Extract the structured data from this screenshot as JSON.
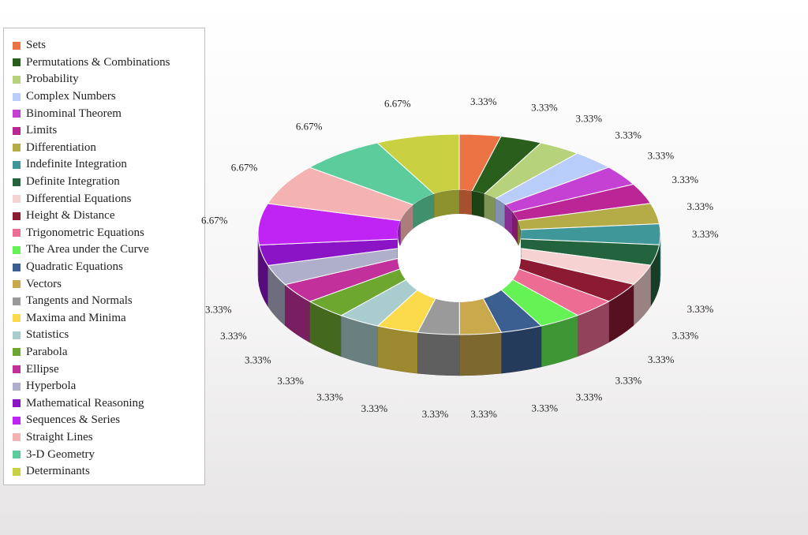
{
  "chart_data": {
    "type": "pie",
    "variant": "3d-doughnut",
    "legend_position": "left",
    "slices": [
      {
        "label": "Sets",
        "value": 3.33,
        "display": "3.33%",
        "color": "#ec7444"
      },
      {
        "label": "Permutations & Combinations",
        "value": 3.33,
        "display": "3.33%",
        "color": "#2a5e1c"
      },
      {
        "label": "Probability",
        "value": 3.33,
        "display": "3.33%",
        "color": "#b6d27a"
      },
      {
        "label": "Complex Numbers",
        "value": 3.33,
        "display": "3.33%",
        "color": "#b9cdfa"
      },
      {
        "label": "Binominal Theorem",
        "value": 3.33,
        "display": "3.33%",
        "color": "#c441d4"
      },
      {
        "label": "Limits",
        "value": 3.33,
        "display": "3.33%",
        "color": "#bb2596"
      },
      {
        "label": "Differentiation",
        "value": 3.33,
        "display": "3.33%",
        "color": "#b4ac46"
      },
      {
        "label": "Indefinite Integration",
        "value": 3.33,
        "display": "3.33%",
        "color": "#40979a"
      },
      {
        "label": "Definite Integration",
        "value": 3.33,
        "display": "3.33%",
        "color": "#23643e"
      },
      {
        "label": "Differential Equations",
        "value": 3.33,
        "display": "3.33%",
        "color": "#f7d2d2"
      },
      {
        "label": "Height & Distance",
        "value": 3.33,
        "display": "3.33%",
        "color": "#8c1a33"
      },
      {
        "label": "Trigonometric Equations",
        "value": 3.33,
        "display": "3.33%",
        "color": "#ec6c94"
      },
      {
        "label": "The Area under the Curve",
        "value": 3.33,
        "display": "3.33%",
        "color": "#64f254"
      },
      {
        "label": "Quadratic Equations",
        "value": 3.33,
        "display": "3.33%",
        "color": "#3c5f92"
      },
      {
        "label": "Vectors",
        "value": 3.33,
        "display": "3.33%",
        "color": "#c9a94c"
      },
      {
        "label": "Tangents and Normals",
        "value": 3.33,
        "display": "3.33%",
        "color": "#9a9a9a"
      },
      {
        "label": "Maxima and Minima",
        "value": 3.33,
        "display": "3.33%",
        "color": "#fbdb4c"
      },
      {
        "label": "Statistics",
        "value": 3.33,
        "display": "3.33%",
        "color": "#a9cdcf"
      },
      {
        "label": "Parabola",
        "value": 3.33,
        "display": "3.33%",
        "color": "#6da72f"
      },
      {
        "label": "Ellipse",
        "value": 3.33,
        "display": "3.33%",
        "color": "#c2309c"
      },
      {
        "label": "Hyperbola",
        "value": 3.33,
        "display": "3.33%",
        "color": "#afafcb"
      },
      {
        "label": "Mathematical Reasoning",
        "value": 3.33,
        "display": "3.33%",
        "color": "#8a14c6"
      },
      {
        "label": "Sequences & Series",
        "value": 6.67,
        "display": "6.67%",
        "color": "#bf24f4"
      },
      {
        "label": "Straight Lines",
        "value": 6.67,
        "display": "6.67%",
        "color": "#f4b2b2"
      },
      {
        "label": "3-D Geometry",
        "value": 6.67,
        "display": "6.67%",
        "color": "#5ccc9c"
      },
      {
        "label": "Determinants",
        "value": 6.67,
        "display": "6.67%",
        "color": "#c9d042"
      }
    ]
  }
}
